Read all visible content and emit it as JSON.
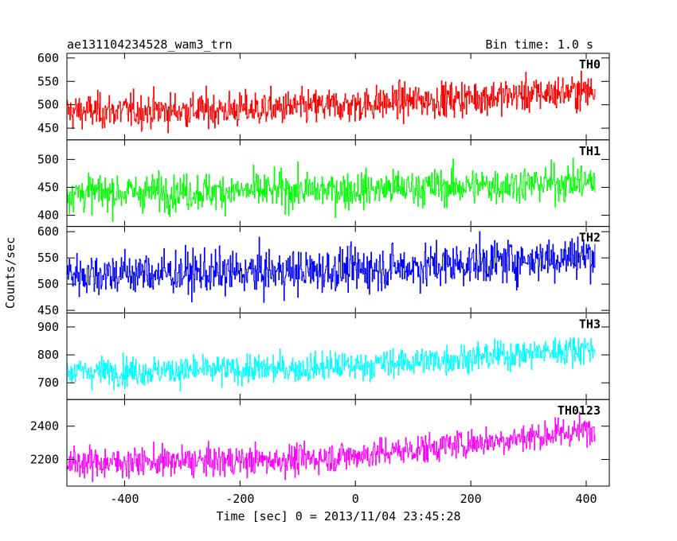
{
  "header": {
    "title": "ae131104234528_wam3_trn",
    "bin_time": "Bin time: 1.0 s"
  },
  "axes": {
    "ylabel": "Counts/sec",
    "xlabel": "Time [sec] 0 = 2013/11/04 23:45:28"
  },
  "chart_data": {
    "type": "line",
    "title": "ae131104234528_wam3_trn",
    "xlabel": "Time [sec] 0 = 2013/11/04 23:45:28",
    "ylabel": "Counts/sec",
    "xlim": [
      -500,
      440
    ],
    "x_range": [
      -500,
      415
    ],
    "x_ticks": [
      -400,
      -200,
      0,
      200,
      400
    ],
    "grid": false,
    "panels": [
      {
        "name": "TH0",
        "color": "#ff0000",
        "ylim": [
          425,
          610
        ],
        "y_ticks": [
          450,
          500,
          550,
          600
        ],
        "trend_x": [
          -500,
          -400,
          -300,
          -200,
          -100,
          0,
          100,
          200,
          300,
          415
        ],
        "trend_y": [
          485,
          487,
          488,
          490,
          494,
          500,
          508,
          515,
          522,
          530
        ],
        "scatter": 25
      },
      {
        "name": "TH1",
        "color": "#00ff00",
        "ylim": [
          380,
          535
        ],
        "y_ticks": [
          400,
          450,
          500
        ],
        "trend_x": [
          -500,
          -400,
          -300,
          -200,
          -100,
          0,
          100,
          200,
          300,
          415
        ],
        "trend_y": [
          440,
          441,
          442,
          443,
          444,
          446,
          449,
          452,
          456,
          460
        ],
        "scatter": 22
      },
      {
        "name": "TH2",
        "color": "#0000ff",
        "ylim": [
          445,
          610
        ],
        "y_ticks": [
          450,
          500,
          550,
          600
        ],
        "trend_x": [
          -500,
          -400,
          -300,
          -200,
          -100,
          0,
          100,
          200,
          300,
          415
        ],
        "trend_y": [
          520,
          521,
          521,
          522,
          524,
          528,
          533,
          540,
          547,
          555
        ],
        "scatter": 28
      },
      {
        "name": "TH3",
        "color": "#00ffff",
        "ylim": [
          640,
          950
        ],
        "y_ticks": [
          700,
          800,
          900
        ],
        "trend_x": [
          -500,
          -400,
          -300,
          -200,
          -100,
          0,
          100,
          200,
          300,
          415
        ],
        "trend_y": [
          740,
          742,
          744,
          747,
          752,
          762,
          775,
          790,
          805,
          825
        ],
        "scatter": 35
      },
      {
        "name": "TH0123",
        "color": "#ff00ff",
        "ylim": [
          2040,
          2560
        ],
        "y_ticks": [
          2200,
          2400
        ],
        "trend_x": [
          -500,
          -400,
          -300,
          -200,
          -100,
          0,
          100,
          200,
          300,
          415
        ],
        "trend_y": [
          2180,
          2183,
          2187,
          2192,
          2200,
          2225,
          2260,
          2300,
          2335,
          2380
        ],
        "scatter": 60
      }
    ]
  }
}
